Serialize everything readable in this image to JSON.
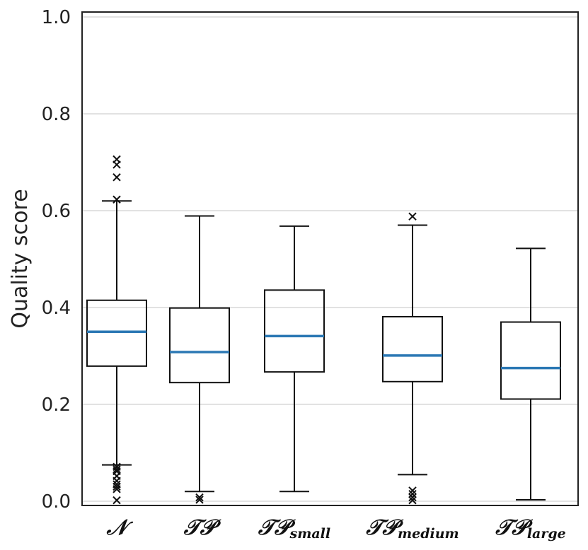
{
  "chart_data": {
    "type": "boxplot",
    "ylabel": "Quality score",
    "xlabel": "",
    "ylim": [
      0.0,
      1.0
    ],
    "yticks": [
      0.0,
      0.2,
      0.4,
      0.6,
      0.8,
      1.0
    ],
    "ytick_labels": [
      "0.0",
      "0.2",
      "0.4",
      "0.6",
      "0.8",
      "1.0"
    ],
    "grid": "horizontal",
    "colors": {
      "median": "#2b78b4",
      "box": "#111111",
      "grid": "#d9d9d9",
      "frame": "#222222"
    },
    "series": [
      {
        "main": "𝒩",
        "sub": "",
        "whisker_low": 0.075,
        "q1": 0.279,
        "median": 0.35,
        "q3": 0.415,
        "whisker_high": 0.62,
        "outliers": [
          0.623,
          0.669,
          0.695,
          0.706,
          0.071,
          0.066,
          0.062,
          0.052,
          0.042,
          0.035,
          0.03,
          0.025,
          0.002
        ]
      },
      {
        "main": "𝒯𝒫",
        "sub": "",
        "whisker_low": 0.02,
        "q1": 0.245,
        "median": 0.308,
        "q3": 0.399,
        "whisker_high": 0.589,
        "outliers": [
          0.008,
          0.003
        ]
      },
      {
        "main": "𝒯𝒫",
        "sub": "small",
        "whisker_low": 0.02,
        "q1": 0.267,
        "median": 0.341,
        "q3": 0.436,
        "whisker_high": 0.568,
        "outliers": []
      },
      {
        "main": "𝒯𝒫",
        "sub": "medium",
        "whisker_low": 0.055,
        "q1": 0.247,
        "median": 0.301,
        "q3": 0.381,
        "whisker_high": 0.57,
        "outliers": [
          0.588,
          0.022,
          0.015,
          0.008,
          0.002
        ]
      },
      {
        "main": "𝒯𝒫",
        "sub": "large",
        "whisker_low": 0.003,
        "q1": 0.211,
        "median": 0.275,
        "q3": 0.37,
        "whisker_high": 0.522,
        "outliers": []
      }
    ]
  }
}
